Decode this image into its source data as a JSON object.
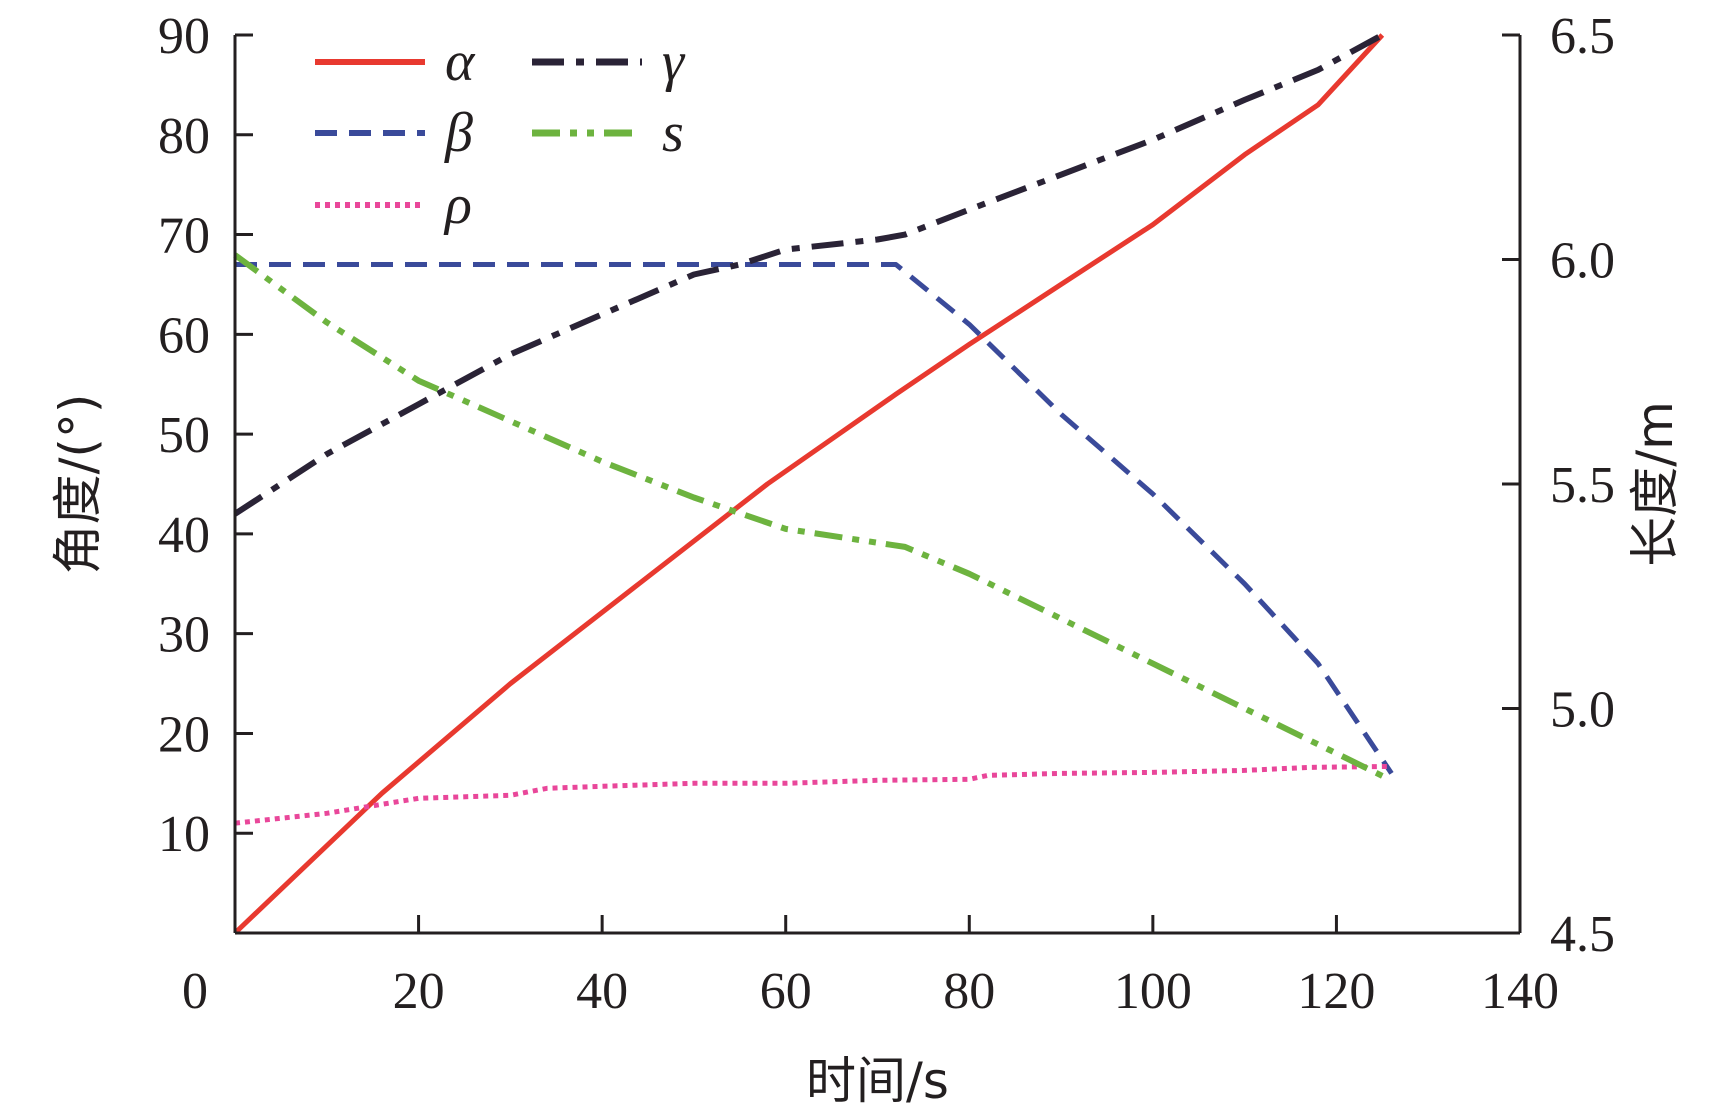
{
  "chart_data": {
    "type": "line",
    "xlabel": "时间/s",
    "ylabel_left": "角度/(°)",
    "ylabel_right": "长度/m",
    "xlim": [
      0,
      140
    ],
    "ylim_left": [
      0,
      90
    ],
    "ylim_right": [
      4.5,
      6.5
    ],
    "x_ticks": [
      0,
      20,
      40,
      60,
      80,
      100,
      120,
      140
    ],
    "x_tick_labels": [
      "0",
      "20",
      "40",
      "60",
      "80",
      "100",
      "120",
      "140"
    ],
    "y_left_ticks": [
      10,
      20,
      30,
      40,
      50,
      60,
      70,
      80,
      90
    ],
    "y_left_tick_labels": [
      "10",
      "20",
      "30",
      "40",
      "50",
      "60",
      "70",
      "80",
      "90"
    ],
    "y_right_ticks": [
      4.5,
      5.0,
      5.5,
      6.0,
      6.5
    ],
    "y_right_tick_labels": [
      "4.5",
      "5.0",
      "5.5",
      "6.0",
      "6.5"
    ],
    "grid": false,
    "legend_position": "top-left",
    "series": [
      {
        "name": "α",
        "axis": "left",
        "color": "#e8392f",
        "style": "solid",
        "x": [
          0,
          16,
          30,
          44,
          58,
          72,
          80,
          90,
          100,
          110,
          118,
          125
        ],
        "y": [
          0,
          14,
          25,
          35,
          45,
          54,
          59,
          65,
          71,
          78,
          83,
          90
        ]
      },
      {
        "name": "β",
        "axis": "left",
        "color": "#3a4a9a",
        "style": "dash",
        "x": [
          0,
          10,
          20,
          30,
          40,
          50,
          60,
          72,
          80,
          90,
          100,
          110,
          118,
          126
        ],
        "y": [
          67,
          67,
          67,
          67,
          67,
          67,
          67,
          67,
          61,
          52,
          44,
          35,
          27,
          16
        ]
      },
      {
        "name": "ρ",
        "axis": "left",
        "color": "#e9479a",
        "style": "dot",
        "x": [
          0,
          10,
          20,
          30,
          34,
          40,
          50,
          60,
          70,
          80,
          82,
          90,
          100,
          110,
          117,
          126
        ],
        "y": [
          11,
          12,
          13.5,
          13.8,
          14.5,
          14.7,
          15,
          15,
          15.3,
          15.4,
          15.8,
          16,
          16.1,
          16.3,
          16.6,
          16.7
        ]
      },
      {
        "name": "γ",
        "axis": "left",
        "color": "#2a2336",
        "style": "dashdot",
        "x": [
          0,
          10,
          20,
          30,
          40,
          50,
          55,
          60,
          70,
          73,
          80,
          90,
          100,
          110,
          118,
          125
        ],
        "y": [
          42,
          48,
          53,
          58,
          62,
          66,
          67,
          68.5,
          69.5,
          70,
          72.5,
          76,
          79.5,
          83.5,
          86.5,
          90
        ]
      },
      {
        "name": "s",
        "axis": "right",
        "color": "#6db33f",
        "style": "dashdotdot",
        "x": [
          0,
          10,
          20,
          30,
          40,
          50,
          60,
          73,
          80,
          90,
          100,
          110,
          118,
          125
        ],
        "y": [
          6.01,
          5.86,
          5.73,
          5.64,
          5.55,
          5.47,
          5.4,
          5.36,
          5.3,
          5.2,
          5.1,
          5.0,
          4.92,
          4.85
        ]
      }
    ]
  }
}
